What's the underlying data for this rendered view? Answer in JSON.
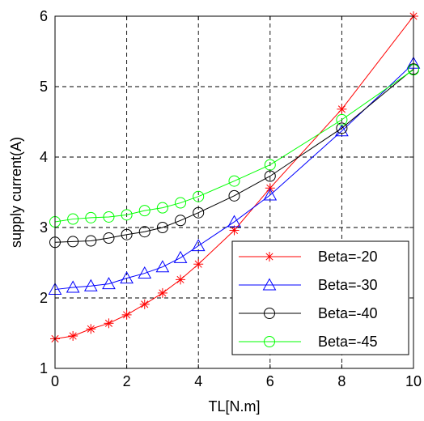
{
  "chart_data": {
    "type": "line",
    "xlabel": "TL[N.m]",
    "ylabel": "supply current(A)",
    "xlim": [
      0,
      10
    ],
    "ylim": [
      1,
      6
    ],
    "xticks": [
      "0",
      "2",
      "4",
      "6",
      "8",
      "10"
    ],
    "yticks": [
      "1",
      "2",
      "3",
      "4",
      "5",
      "6"
    ],
    "grid": true,
    "legend_position": "bottom-right",
    "series": [
      {
        "name": "Beta=-20",
        "color": "#ff0000",
        "marker": "asterisk",
        "x": [
          0,
          0.5,
          1,
          1.5,
          2,
          2.5,
          3,
          3.5,
          4,
          5,
          6,
          8,
          10
        ],
        "y": [
          1.42,
          1.46,
          1.56,
          1.64,
          1.76,
          1.91,
          2.07,
          2.26,
          2.48,
          2.96,
          3.56,
          4.68,
          6.0
        ]
      },
      {
        "name": "Beta=-30",
        "color": "#0000ff",
        "marker": "triangle",
        "x": [
          0,
          0.5,
          1,
          1.5,
          2,
          2.5,
          3,
          3.5,
          4,
          5,
          6,
          8,
          10
        ],
        "y": [
          2.12,
          2.15,
          2.17,
          2.2,
          2.28,
          2.35,
          2.44,
          2.57,
          2.74,
          3.08,
          3.46,
          4.37,
          5.33
        ]
      },
      {
        "name": "Beta=-40",
        "color": "#000000",
        "marker": "circle",
        "x": [
          0,
          0.5,
          1,
          1.5,
          2,
          2.5,
          3,
          3.5,
          4,
          5,
          6,
          8,
          10
        ],
        "y": [
          2.79,
          2.8,
          2.81,
          2.85,
          2.9,
          2.94,
          3.0,
          3.1,
          3.21,
          3.45,
          3.73,
          4.41,
          5.25
        ]
      },
      {
        "name": "Beta=-45",
        "color": "#00ff00",
        "marker": "circle",
        "x": [
          0,
          0.5,
          1,
          1.5,
          2,
          2.5,
          3,
          3.5,
          4,
          5,
          6,
          8,
          10
        ],
        "y": [
          3.08,
          3.12,
          3.14,
          3.15,
          3.18,
          3.24,
          3.28,
          3.35,
          3.44,
          3.66,
          3.89,
          4.53,
          5.24
        ]
      }
    ]
  }
}
